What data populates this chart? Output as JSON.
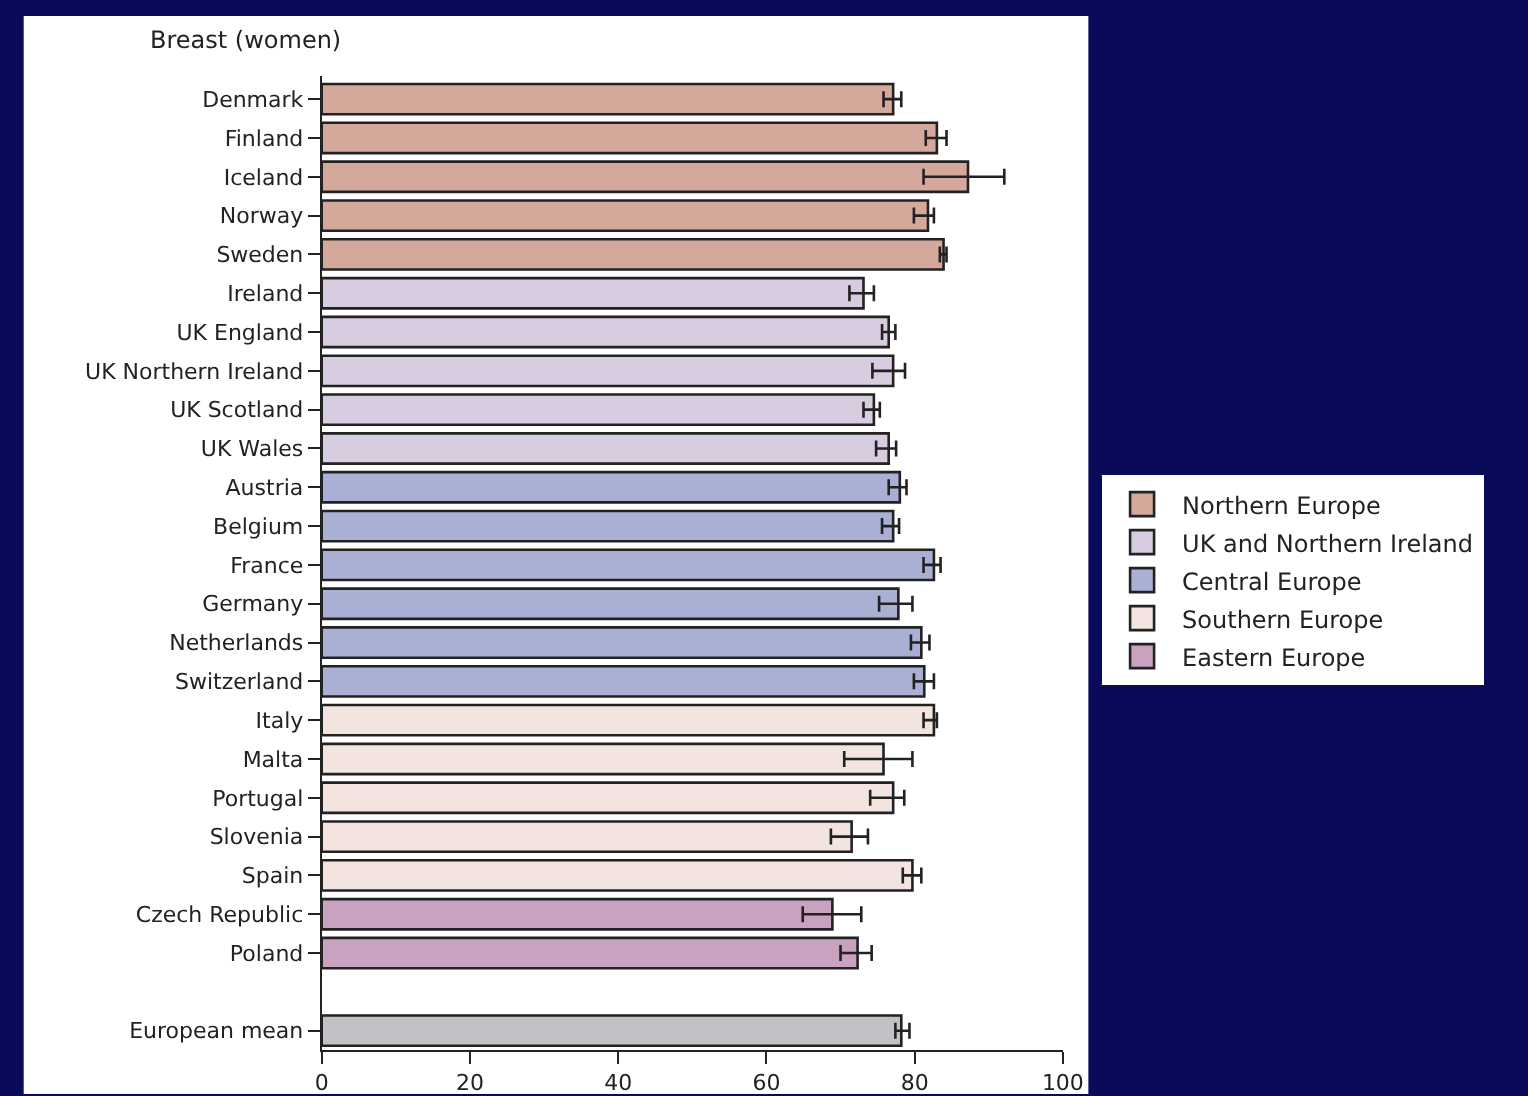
{
  "chart_data": {
    "type": "bar",
    "orientation": "horizontal",
    "title": "Breast (women)",
    "categories": [
      "Denmark",
      "Finland",
      "Iceland",
      "Norway",
      "Sweden",
      "Ireland",
      "UK England",
      "UK Northern Ireland",
      "UK Scotland",
      "UK Wales",
      "Austria",
      "Belgium",
      "France",
      "Germany",
      "Netherlands",
      "Switzerland",
      "Italy",
      "Malta",
      "Portugal",
      "Slovenia",
      "Spain",
      "Czech Republic",
      "Poland",
      null,
      "European mean"
    ],
    "series": [
      {
        "name": "Northern Europe",
        "color": "#d4a99b",
        "values": [
          77.1,
          83.0,
          87.2,
          81.8,
          83.9,
          null,
          null,
          null,
          null,
          null,
          null,
          null,
          null,
          null,
          null,
          null,
          null,
          null,
          null,
          null,
          null,
          null,
          null,
          null,
          null
        ],
        "errors": [
          [
            75.8,
            78.2
          ],
          [
            81.5,
            84.3
          ],
          [
            81.2,
            92.1
          ],
          [
            79.9,
            82.6
          ],
          [
            83.4,
            84.3
          ],
          null,
          null,
          null,
          null,
          null,
          null,
          null,
          null,
          null,
          null,
          null,
          null,
          null,
          null,
          null,
          null,
          null,
          null,
          null,
          null
        ]
      },
      {
        "name": "UK and Northern Ireland",
        "color": "#d8cce0",
        "values": [
          null,
          null,
          null,
          null,
          null,
          73.1,
          76.5,
          77.1,
          74.5,
          76.5,
          null,
          null,
          null,
          null,
          null,
          null,
          null,
          null,
          null,
          null,
          null,
          null,
          null,
          null,
          null
        ],
        "errors": [
          null,
          null,
          null,
          null,
          null,
          [
            71.2,
            74.5
          ],
          [
            75.6,
            77.4
          ],
          [
            74.3,
            78.7
          ],
          [
            73.1,
            75.3
          ],
          [
            74.8,
            77.5
          ],
          null,
          null,
          null,
          null,
          null,
          null,
          null,
          null,
          null,
          null,
          null,
          null,
          null,
          null,
          null
        ]
      },
      {
        "name": "Central Europe",
        "color": "#aab0d4",
        "values": [
          null,
          null,
          null,
          null,
          null,
          null,
          null,
          null,
          null,
          null,
          78.0,
          77.1,
          82.6,
          77.8,
          80.9,
          81.3,
          null,
          null,
          null,
          null,
          null,
          null,
          null,
          null,
          null
        ],
        "errors": [
          null,
          null,
          null,
          null,
          null,
          null,
          null,
          null,
          null,
          null,
          [
            76.5,
            78.9
          ],
          [
            75.6,
            77.9
          ],
          [
            81.2,
            83.5
          ],
          [
            75.2,
            79.7
          ],
          [
            79.5,
            82.0
          ],
          [
            79.9,
            82.6
          ],
          null,
          null,
          null,
          null,
          null,
          null,
          null,
          null,
          null
        ]
      },
      {
        "name": "Southern Europe",
        "color": "#f3e4e0",
        "values": [
          null,
          null,
          null,
          null,
          null,
          null,
          null,
          null,
          null,
          null,
          null,
          null,
          null,
          null,
          null,
          null,
          82.6,
          75.8,
          77.1,
          71.5,
          79.7,
          null,
          null,
          null,
          null
        ],
        "errors": [
          null,
          null,
          null,
          null,
          null,
          null,
          null,
          null,
          null,
          null,
          null,
          null,
          null,
          null,
          null,
          null,
          [
            81.2,
            83.0
          ],
          [
            70.5,
            79.7
          ],
          [
            74.0,
            78.6
          ],
          [
            68.7,
            73.7
          ],
          [
            78.4,
            80.9
          ],
          null,
          null,
          null,
          null
        ]
      },
      {
        "name": "Eastern Europe",
        "color": "#c8a2bf",
        "values": [
          null,
          null,
          null,
          null,
          null,
          null,
          null,
          null,
          null,
          null,
          null,
          null,
          null,
          null,
          null,
          null,
          null,
          null,
          null,
          null,
          null,
          68.9,
          72.3,
          null,
          null
        ],
        "errors": [
          null,
          null,
          null,
          null,
          null,
          null,
          null,
          null,
          null,
          null,
          null,
          null,
          null,
          null,
          null,
          null,
          null,
          null,
          null,
          null,
          null,
          [
            64.9,
            72.8
          ],
          [
            70.0,
            74.2
          ],
          null,
          null
        ]
      },
      {
        "color": "#c0c2c6",
        "values": [
          null,
          null,
          null,
          null,
          null,
          null,
          null,
          null,
          null,
          null,
          null,
          null,
          null,
          null,
          null,
          null,
          null,
          null,
          null,
          null,
          null,
          null,
          null,
          null,
          78.2
        ],
        "errors": [
          null,
          null,
          null,
          null,
          null,
          null,
          null,
          null,
          null,
          null,
          null,
          null,
          null,
          null,
          null,
          null,
          null,
          null,
          null,
          null,
          null,
          null,
          null,
          null,
          [
            77.4,
            79.3
          ]
        ]
      }
    ],
    "xlim": [
      0,
      100
    ],
    "xticks": [
      0,
      20,
      40,
      60,
      80,
      100
    ],
    "legend": "right"
  }
}
